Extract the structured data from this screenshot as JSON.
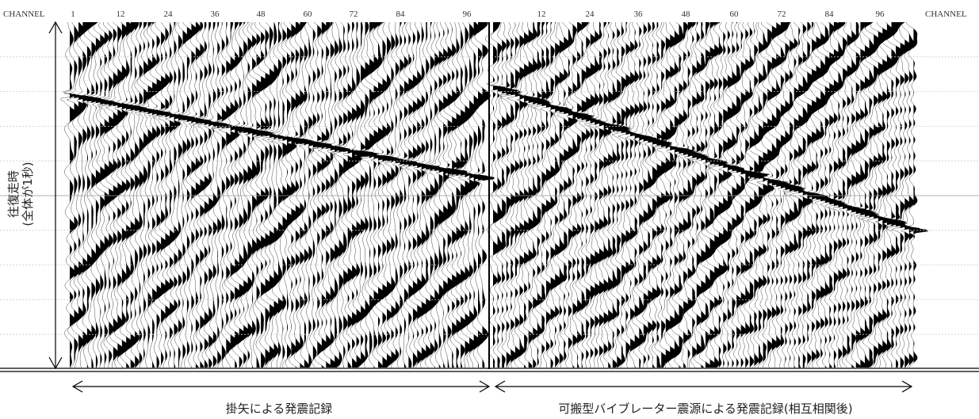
{
  "header": {
    "left_channel_label": "CHANNEL",
    "right_channel_label": "CHANNEL"
  },
  "left_panel": {
    "channel_ticks": [
      "1",
      "12",
      "24",
      "36",
      "48",
      "60",
      "72",
      "84",
      "96"
    ],
    "caption": "掛矢による発震記録"
  },
  "right_panel": {
    "channel_ticks": [
      "12",
      "24",
      "36",
      "48",
      "60",
      "72",
      "84",
      "96"
    ],
    "caption": "可搬型バイブレーター震源による発震記録(相互相関後)"
  },
  "y_axis_label": {
    "line1": "往復走時",
    "line2": "(全体が1秒)"
  }
}
